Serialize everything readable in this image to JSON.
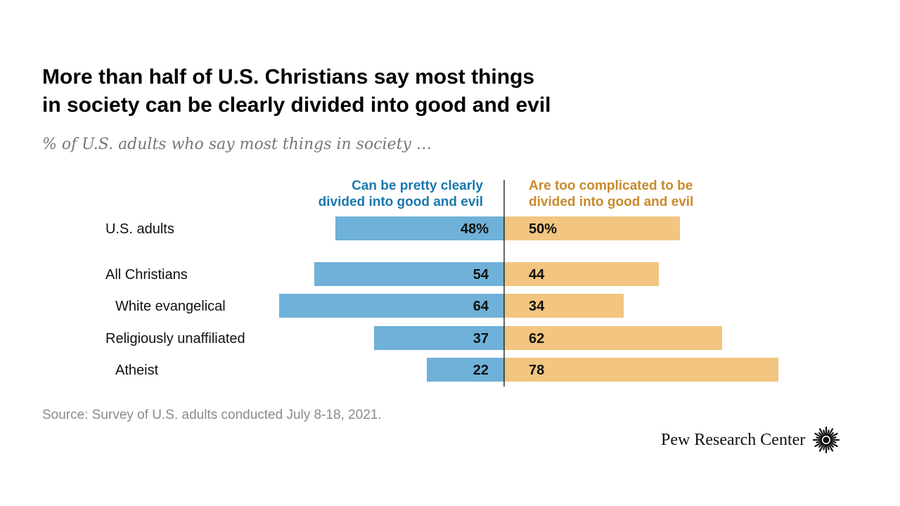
{
  "title_lines": [
    "More than half of U.S. Christians say most things",
    "in society can be clearly divided into good and evil"
  ],
  "subtitle": "% of U.S. adults who say most things in society …",
  "source": "Source: Survey of U.S. adults conducted July 8-18, 2021.",
  "brand": "Pew Research Center",
  "colors": {
    "left_bar": "#6fb1d8",
    "right_bar": "#f2c580",
    "left_header": "#1a78ad",
    "right_header": "#c98a2c",
    "axis": "#000000"
  },
  "chart_data": {
    "type": "bar",
    "orientation": "horizontal-diverging",
    "title": "More than half of U.S. Christians say most things in society can be clearly divided into good and evil",
    "subtitle": "% of U.S. adults who say most things in society …",
    "categories": [
      "U.S. adults",
      "All Christians",
      "White evangelical",
      "Religiously unaffiliated",
      "Atheist"
    ],
    "category_indent": [
      false,
      false,
      true,
      false,
      true
    ],
    "series": [
      {
        "name": "Can be pretty clearly divided into good and evil",
        "header_lines": [
          "Can be pretty clearly",
          "divided into good and evil"
        ],
        "values": [
          48,
          54,
          64,
          37,
          22
        ],
        "labels": [
          "48%",
          "54",
          "64",
          "37",
          "22"
        ]
      },
      {
        "name": "Are too complicated to be divided into good and evil",
        "header_lines": [
          "Are too complicated to be",
          "divided into good and evil"
        ],
        "values": [
          50,
          44,
          34,
          62,
          78
        ],
        "labels": [
          "50%",
          "44",
          "34",
          "62",
          "78"
        ]
      }
    ],
    "xlim": [
      0,
      100
    ],
    "source": "Source: Survey of U.S. adults conducted July 8-18, 2021."
  }
}
